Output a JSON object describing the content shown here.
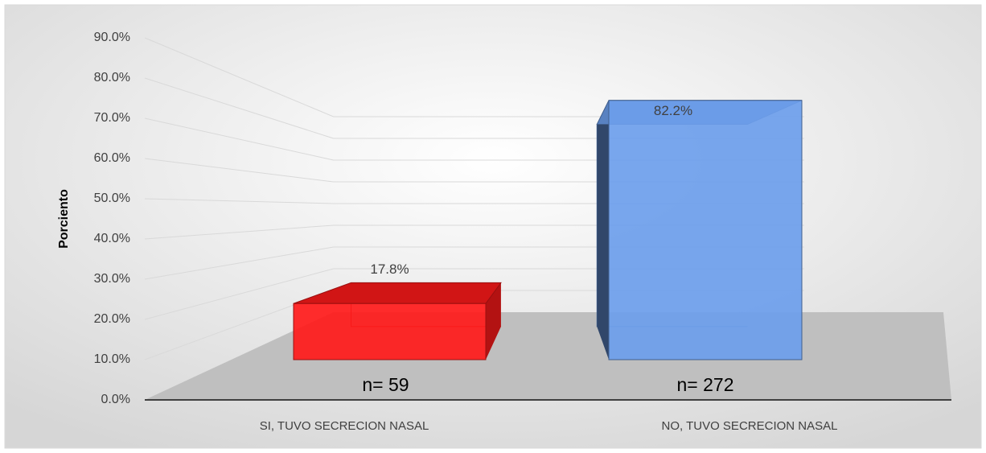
{
  "chart_data": {
    "type": "bar3d",
    "y_label": "Porciento",
    "categories": [
      "SI, TUVO SECRECION NASAL",
      "NO, TUVO SECRECION NASAL"
    ],
    "values": [
      17.8,
      82.2
    ],
    "value_labels": [
      "17.8%",
      "82.2%"
    ],
    "annotations": [
      "n= 59",
      "n= 272"
    ],
    "colors": [
      "#ff1a1a",
      "#6d9eeb"
    ],
    "ylim": [
      0,
      90
    ],
    "yticks": [
      {
        "value": 0,
        "label": "0.0%"
      },
      {
        "value": 10,
        "label": "10.0%"
      },
      {
        "value": 20,
        "label": "20.0%"
      },
      {
        "value": 30,
        "label": "30.0%"
      },
      {
        "value": 40,
        "label": "40.0%"
      },
      {
        "value": 50,
        "label": "50.0%"
      },
      {
        "value": 60,
        "label": "60.0%"
      },
      {
        "value": 70,
        "label": "70.0%"
      },
      {
        "value": 80,
        "label": "80.0%"
      },
      {
        "value": 90,
        "label": "90.0%"
      }
    ],
    "grid": true
  }
}
